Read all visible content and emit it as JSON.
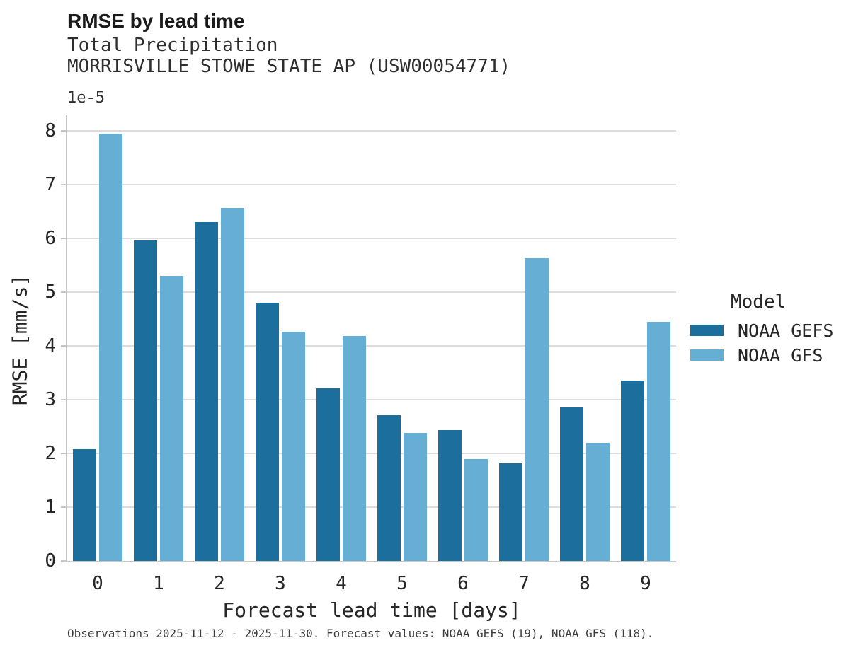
{
  "header": {
    "title": "RMSE by lead time",
    "subtitle": "Total Precipitation",
    "station": "MORRISVILLE STOWE STATE AP (USW00054771)"
  },
  "chart_data": {
    "type": "bar",
    "title": "RMSE by lead time",
    "subtitle": "Total Precipitation",
    "station": "MORRISVILLE STOWE STATE AP (USW00054771)",
    "categories": [
      "0",
      "1",
      "2",
      "3",
      "4",
      "5",
      "6",
      "7",
      "8",
      "9"
    ],
    "series": [
      {
        "name": "NOAA GEFS",
        "color": "#1c6e9c",
        "values": [
          2.08,
          5.96,
          6.3,
          4.8,
          3.21,
          2.71,
          2.43,
          1.82,
          2.86,
          3.35
        ]
      },
      {
        "name": "NOAA GFS",
        "color": "#67aed5",
        "values": [
          7.95,
          5.3,
          6.56,
          4.27,
          4.18,
          2.38,
          1.9,
          5.63,
          2.2,
          4.45
        ]
      }
    ],
    "xlabel": "Forecast lead time [days]",
    "ylabel": "RMSE [mm/s]",
    "offset_text": "1e-5",
    "ylim": [
      0,
      8.29
    ],
    "yticks": [
      0,
      1,
      2,
      3,
      4,
      5,
      6,
      7,
      8
    ],
    "legend_title": "Model",
    "legend_position": "right",
    "grid": true,
    "grid_color": "#dcdcdc",
    "unit_scale": "1e-5 mm/s"
  },
  "caption": "Observations 2025-11-12 - 2025-11-30. Forecast values: NOAA GEFS (19), NOAA GFS (118)."
}
